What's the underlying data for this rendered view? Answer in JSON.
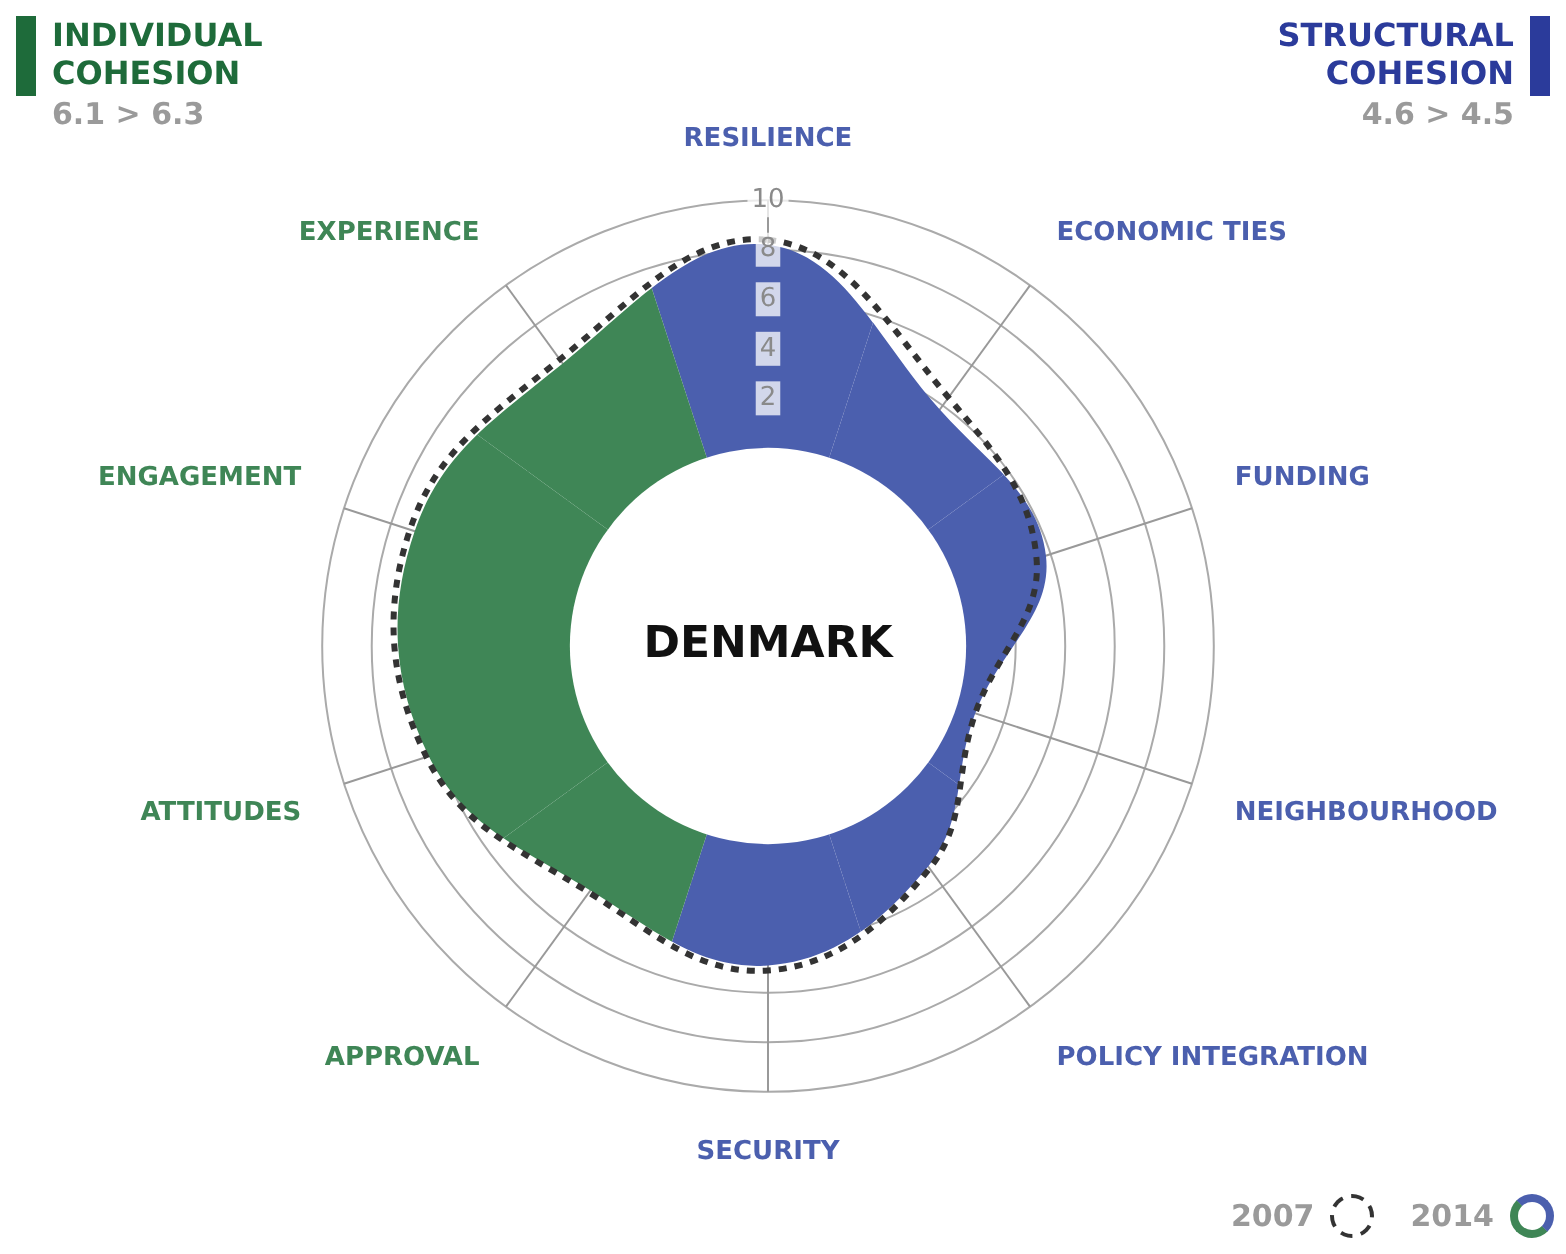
{
  "chart_data": {
    "type": "radar",
    "title": "DENMARK",
    "categories": [
      "RESILIENCE",
      "ECONOMIC TIES",
      "FUNDING",
      "NEIGHBOURHOOD",
      "POLICY INTEGRATION",
      "SECURITY",
      "APPROVAL",
      "ATTITUDES",
      "ENGAGEMENT",
      "EXPERIENCE"
    ],
    "series": [
      {
        "name": "2007",
        "color": "#333333",
        "line_style": "dashed",
        "values": [
          8.4,
          4.4,
          3.4,
          0.8,
          3.1,
          5.1,
          4.3,
          6.5,
          7.2,
          6.3
        ]
      },
      {
        "name": "2014",
        "colors": [
          "#4b5fae",
          "#4b5fae",
          "#4b5fae",
          "#4b5fae",
          "#4b5fae",
          "#4b5fae",
          "#3f8656",
          "#3f8656",
          "#3f8656",
          "#3f8656"
        ],
        "values": [
          8.2,
          3.8,
          3.8,
          0.8,
          3.0,
          4.9,
          4.2,
          6.4,
          7.0,
          6.1
        ]
      }
    ],
    "ylim": [
      -8,
      10
    ],
    "yticks": [
      2,
      4,
      6,
      8,
      10
    ],
    "grid": true,
    "legend": "bottom right",
    "annotations": [
      "INDIVIDUAL COHESION",
      "6.1 > 6.3",
      "STRUCTURAL COHESION",
      "4.6 > 4.5"
    ]
  }
}
